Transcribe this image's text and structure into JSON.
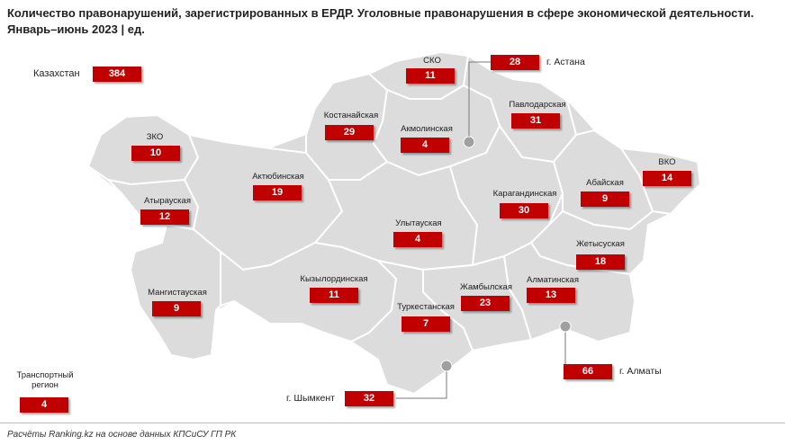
{
  "title": {
    "line1": "Количество правонарушений, зарегистрированных в ЕРДР. Уголовные правонарушения в сфере экономической деятельности.",
    "line2": "Январь–июнь 2023 | ед."
  },
  "kazakhstan": {
    "label": "Казахстан",
    "value": "384"
  },
  "transport": {
    "label_line1": "Транспортный",
    "label_line2": "регион",
    "value": "4"
  },
  "regions": {
    "zko": {
      "name": "ЗКО",
      "value": "10"
    },
    "atyrau": {
      "name": "Атырауская",
      "value": "12"
    },
    "mangistau": {
      "name": "Мангистауская",
      "value": "9"
    },
    "aktobe": {
      "name": "Актюбинская",
      "value": "19"
    },
    "kostanay": {
      "name": "Костанайская",
      "value": "29"
    },
    "sko": {
      "name": "СКО",
      "value": "11"
    },
    "akmola": {
      "name": "Акмолинская",
      "value": "4"
    },
    "pavlodar": {
      "name": "Павлодарская",
      "value": "31"
    },
    "karaganda": {
      "name": "Карагандинская",
      "value": "30"
    },
    "ulytau": {
      "name": "Улытауская",
      "value": "4"
    },
    "abay": {
      "name": "Абайская",
      "value": "9"
    },
    "vko": {
      "name": "ВКО",
      "value": "14"
    },
    "zhetysu": {
      "name": "Жетысуская",
      "value": "18"
    },
    "almaty_obl": {
      "name": "Алматинская",
      "value": "13"
    },
    "zhambyl": {
      "name": "Жамбылская",
      "value": "23"
    },
    "kyzylorda": {
      "name": "Кызылординская",
      "value": "11"
    },
    "turkestan": {
      "name": "Туркестанская",
      "value": "7"
    }
  },
  "cities": {
    "astana": {
      "name": "г. Астана",
      "value": "28"
    },
    "almaty": {
      "name": "г. Алматы",
      "value": "66"
    },
    "shymkent": {
      "name": "г. Шымкент",
      "value": "32"
    }
  },
  "colors": {
    "region_fill": "#dcdcdc",
    "value_box": "#c00000",
    "marker": "#a0a0a0"
  },
  "footer": "Расчёты Ranking.kz на основе данных КПСиСУ ГП РК"
}
